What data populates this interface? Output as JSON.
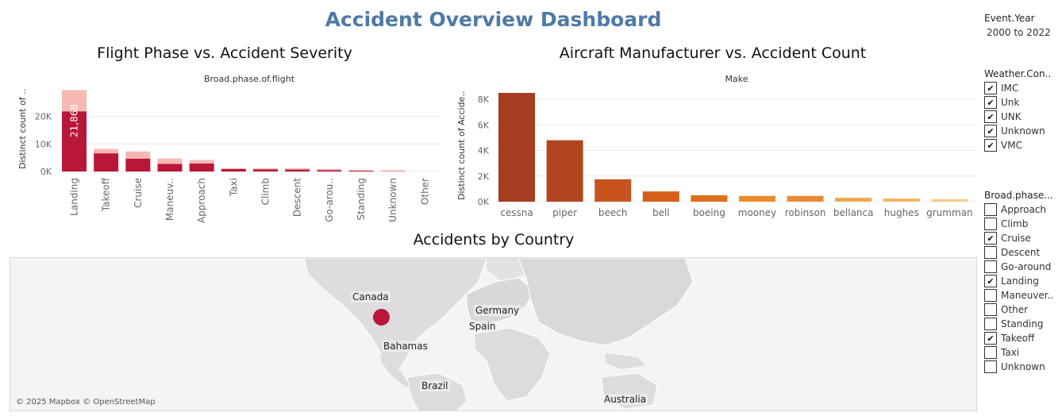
{
  "dashboard": {
    "title": "Accident Overview Dashboard"
  },
  "sheet_phase": {
    "title": "Flight Phase vs. Accident Severity",
    "header": "Broad.phase.of.flight",
    "y_axis_title": "Distinct count of ..",
    "bar_label": "21,868"
  },
  "sheet_make": {
    "title": "Aircraft Manufacturer vs. Accident Count",
    "header": "Make",
    "y_axis_title": "Distinct count of Accide.."
  },
  "sheet_map": {
    "title": "Accidents by Country",
    "labels": [
      "Canada",
      "Germany",
      "Spain",
      "Bahamas",
      "Brazil",
      "Australia"
    ],
    "credit": "© 2025 Mapbox © OpenStreetMap",
    "marker_color": "#b8173a"
  },
  "filters": {
    "event_year": {
      "title": "Event.Year",
      "value": "2000 to 2022"
    },
    "weather": {
      "title": "Weather.Con..",
      "options": [
        {
          "label": "IMC",
          "checked": true
        },
        {
          "label": "Unk",
          "checked": true
        },
        {
          "label": "UNK",
          "checked": true
        },
        {
          "label": "Unknown",
          "checked": true
        },
        {
          "label": "VMC",
          "checked": true
        }
      ]
    },
    "phase": {
      "title": "Broad.phase...",
      "options": [
        {
          "label": "Approach",
          "checked": false
        },
        {
          "label": "Climb",
          "checked": false
        },
        {
          "label": "Cruise",
          "checked": true
        },
        {
          "label": "Descent",
          "checked": false
        },
        {
          "label": "Go-around",
          "checked": false
        },
        {
          "label": "Landing",
          "checked": true
        },
        {
          "label": "Maneuver..",
          "checked": false
        },
        {
          "label": "Other",
          "checked": false
        },
        {
          "label": "Standing",
          "checked": false
        },
        {
          "label": "Takeoff",
          "checked": true
        },
        {
          "label": "Taxi",
          "checked": false
        },
        {
          "label": "Unknown",
          "checked": false
        }
      ]
    }
  },
  "chart_data": [
    {
      "type": "bar",
      "stacked": true,
      "title": "Flight Phase vs. Accident Severity",
      "xlabel": "Broad.phase.of.flight",
      "ylabel": "Distinct count of ..",
      "categories": [
        "Landing",
        "Takeoff",
        "Cruise",
        "Maneuv..",
        "Approach",
        "Taxi",
        "Climb",
        "Descent",
        "Go-arou..",
        "Standing",
        "Unknown",
        "Other"
      ],
      "series": [
        {
          "color": "#b8173a",
          "values": [
            21868,
            6600,
            4700,
            2800,
            2900,
            900,
            800,
            700,
            500,
            300,
            100,
            0
          ]
        },
        {
          "color": "#f6b9b2",
          "values": [
            7700,
            1600,
            2600,
            1900,
            1300,
            300,
            400,
            500,
            400,
            150,
            300,
            0
          ]
        }
      ],
      "yticks": [
        0,
        10000,
        20000
      ],
      "ytick_labels": [
        "0K",
        "10K",
        "20K"
      ],
      "grid": true
    },
    {
      "type": "bar",
      "title": "Aircraft Manufacturer vs. Accident Count",
      "xlabel": "Make",
      "ylabel": "Distinct count of Accide..",
      "categories": [
        "cessna",
        "piper",
        "beech",
        "bell",
        "boeing",
        "mooney",
        "robinson",
        "bellanca",
        "hughes",
        "grumman"
      ],
      "values": [
        8500,
        4800,
        1750,
        800,
        500,
        450,
        450,
        300,
        250,
        200
      ],
      "colors": [
        "#a63c22",
        "#b24520",
        "#c7541f",
        "#d55f1a",
        "#e0701c",
        "#ec8b2f",
        "#e98a36",
        "#f0a64e",
        "#f3b663",
        "#f7cb8c"
      ],
      "yticks": [
        0,
        2000,
        4000,
        6000,
        8000
      ],
      "ytick_labels": [
        "0K",
        "2K",
        "4K",
        "6K",
        "8K"
      ],
      "grid": true
    }
  ]
}
